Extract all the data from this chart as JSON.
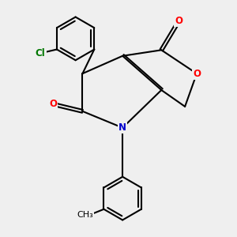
{
  "bg_color": "#efefef",
  "bond_color": "#000000",
  "bond_lw": 1.5,
  "atom_colors": {
    "O": "#ff0000",
    "N": "#0000cc",
    "Cl": "#007700"
  },
  "fig_size": [
    3.0,
    3.0
  ],
  "dpi": 100,
  "font_size": 8.5
}
